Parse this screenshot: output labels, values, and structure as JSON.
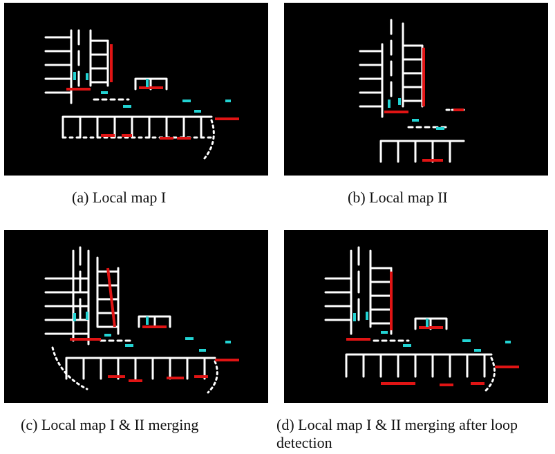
{
  "figure": {
    "panels": [
      {
        "id": "a",
        "caption": "(a)  Local map I"
      },
      {
        "id": "b",
        "caption": "(b)  Local map II"
      },
      {
        "id": "c",
        "caption": "(c)  Local map I & II merging"
      },
      {
        "id": "d",
        "caption": "(d)  Local map I & II merging after loop detection"
      }
    ],
    "colors": {
      "background": "#000000",
      "point_cloud": "#ffffff",
      "highlight_red": "#e01414",
      "highlight_cyan": "#22d3d3"
    }
  }
}
